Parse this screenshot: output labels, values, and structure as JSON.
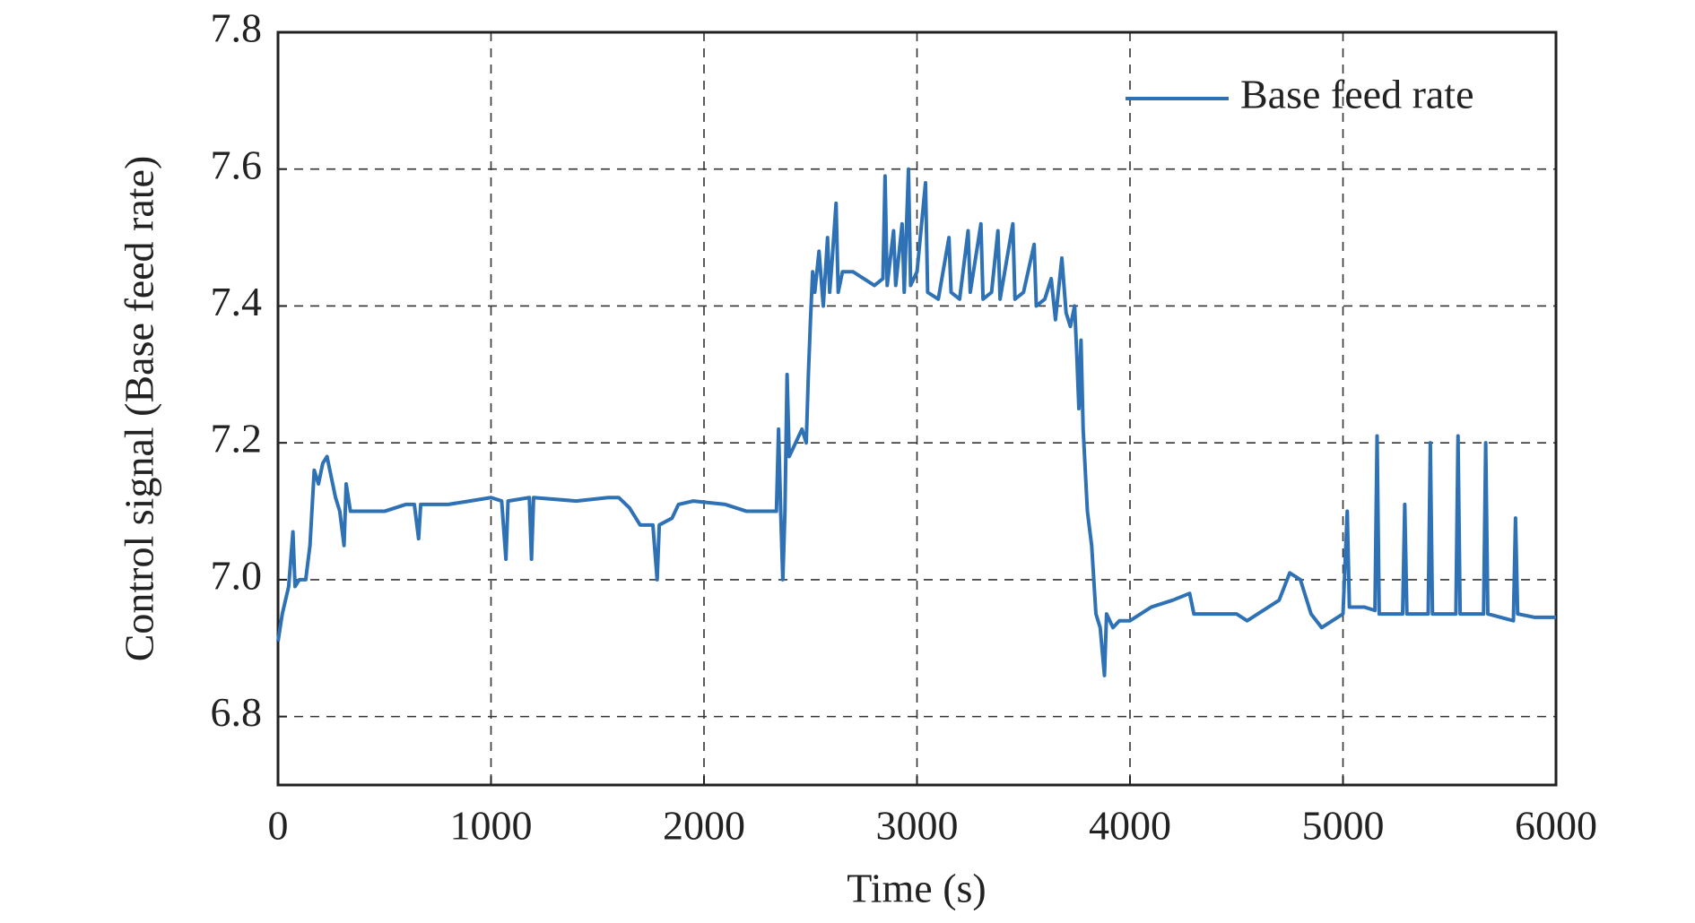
{
  "chart_data": {
    "type": "line",
    "xlabel": "Time (s)",
    "ylabel": "Control signal (Base feed rate)",
    "x": [
      0,
      20,
      50,
      70,
      80,
      100,
      130,
      150,
      170,
      190,
      210,
      230,
      250,
      270,
      290,
      310,
      320,
      340,
      400,
      500,
      600,
      640,
      660,
      670,
      800,
      900,
      1000,
      1050,
      1070,
      1080,
      1180,
      1190,
      1200,
      1400,
      1550,
      1600,
      1650,
      1700,
      1760,
      1780,
      1790,
      1850,
      1880,
      1950,
      2100,
      2200,
      2300,
      2340,
      2350,
      2360,
      2370,
      2380,
      2390,
      2400,
      2430,
      2460,
      2480,
      2490,
      2500,
      2510,
      2520,
      2540,
      2560,
      2580,
      2590,
      2600,
      2620,
      2630,
      2650,
      2700,
      2750,
      2800,
      2840,
      2850,
      2860,
      2890,
      2900,
      2930,
      2940,
      2960,
      2970,
      3000,
      3040,
      3050,
      3100,
      3150,
      3160,
      3200,
      3240,
      3250,
      3300,
      3310,
      3350,
      3380,
      3390,
      3450,
      3460,
      3500,
      3550,
      3560,
      3600,
      3630,
      3650,
      3680,
      3700,
      3720,
      3740,
      3750,
      3760,
      3770,
      3780,
      3800,
      3820,
      3840,
      3860,
      3880,
      3890,
      3920,
      3950,
      4000,
      4100,
      4200,
      4280,
      4300,
      4400,
      4500,
      4550,
      4600,
      4700,
      4750,
      4800,
      4850,
      4900,
      5000,
      5020,
      5030,
      5100,
      5150,
      5160,
      5170,
      5280,
      5290,
      5300,
      5400,
      5410,
      5420,
      5530,
      5540,
      5550,
      5660,
      5670,
      5680,
      5800,
      5810,
      5820,
      5900,
      6000
    ],
    "series": [
      {
        "name": "Base feed rate",
        "color": "#2e72b5",
        "values": [
          6.91,
          6.95,
          6.99,
          7.07,
          6.99,
          7.0,
          7.0,
          7.05,
          7.16,
          7.14,
          7.17,
          7.18,
          7.15,
          7.12,
          7.1,
          7.05,
          7.14,
          7.1,
          7.1,
          7.1,
          7.11,
          7.11,
          7.06,
          7.11,
          7.11,
          7.115,
          7.12,
          7.115,
          7.03,
          7.115,
          7.12,
          7.03,
          7.12,
          7.115,
          7.12,
          7.12,
          7.105,
          7.08,
          7.08,
          7.0,
          7.08,
          7.09,
          7.11,
          7.115,
          7.11,
          7.1,
          7.1,
          7.1,
          7.22,
          7.1,
          7.0,
          7.1,
          7.3,
          7.18,
          7.2,
          7.22,
          7.2,
          7.3,
          7.38,
          7.45,
          7.42,
          7.48,
          7.4,
          7.5,
          7.42,
          7.46,
          7.55,
          7.42,
          7.45,
          7.45,
          7.44,
          7.43,
          7.44,
          7.59,
          7.43,
          7.51,
          7.43,
          7.52,
          7.42,
          7.6,
          7.43,
          7.45,
          7.58,
          7.42,
          7.41,
          7.5,
          7.42,
          7.41,
          7.51,
          7.42,
          7.52,
          7.41,
          7.42,
          7.51,
          7.41,
          7.52,
          7.41,
          7.42,
          7.49,
          7.4,
          7.41,
          7.44,
          7.38,
          7.47,
          7.39,
          7.37,
          7.4,
          7.33,
          7.25,
          7.35,
          7.22,
          7.1,
          7.05,
          6.95,
          6.93,
          6.86,
          6.95,
          6.93,
          6.94,
          6.94,
          6.96,
          6.97,
          6.98,
          6.95,
          6.95,
          6.95,
          6.94,
          6.95,
          6.97,
          7.01,
          7.0,
          6.95,
          6.93,
          6.95,
          7.1,
          6.96,
          6.96,
          6.955,
          7.21,
          6.95,
          6.95,
          7.11,
          6.95,
          6.95,
          7.2,
          6.95,
          6.95,
          7.21,
          6.95,
          6.95,
          7.2,
          6.95,
          6.94,
          7.09,
          6.95,
          6.945,
          6.945
        ]
      }
    ],
    "xlim": [
      0,
      6000
    ],
    "xticks": [
      0,
      1000,
      2000,
      3000,
      4000,
      5000,
      6000
    ],
    "ylim": [
      6.7,
      7.8
    ],
    "yticks": [
      6.8,
      {
        "value": 7,
        "label": "7.0"
      },
      7.2,
      7.4,
      7.6,
      7.8
    ],
    "grid": true,
    "legend": "upper right"
  }
}
